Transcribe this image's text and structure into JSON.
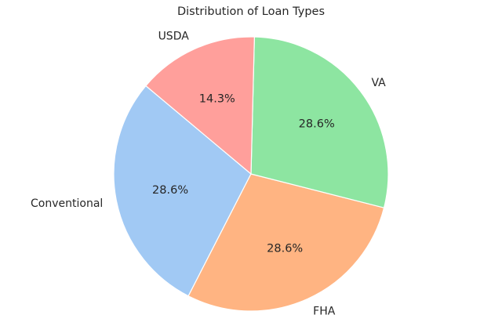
{
  "chart_data": {
    "type": "pie",
    "title": "Distribution of Loan Types",
    "start_angle_deg": 140,
    "counterclock": true,
    "slices": [
      {
        "label": "Conventional",
        "value": 28.6,
        "pct_label": "28.6%",
        "color": "#a1c9f4"
      },
      {
        "label": "FHA",
        "value": 28.6,
        "pct_label": "28.6%",
        "color": "#ffb482"
      },
      {
        "label": "VA",
        "value": 28.6,
        "pct_label": "28.6%",
        "color": "#8de5a1"
      },
      {
        "label": "USDA",
        "value": 14.3,
        "pct_label": "14.3%",
        "color": "#ff9f9b"
      }
    ]
  }
}
